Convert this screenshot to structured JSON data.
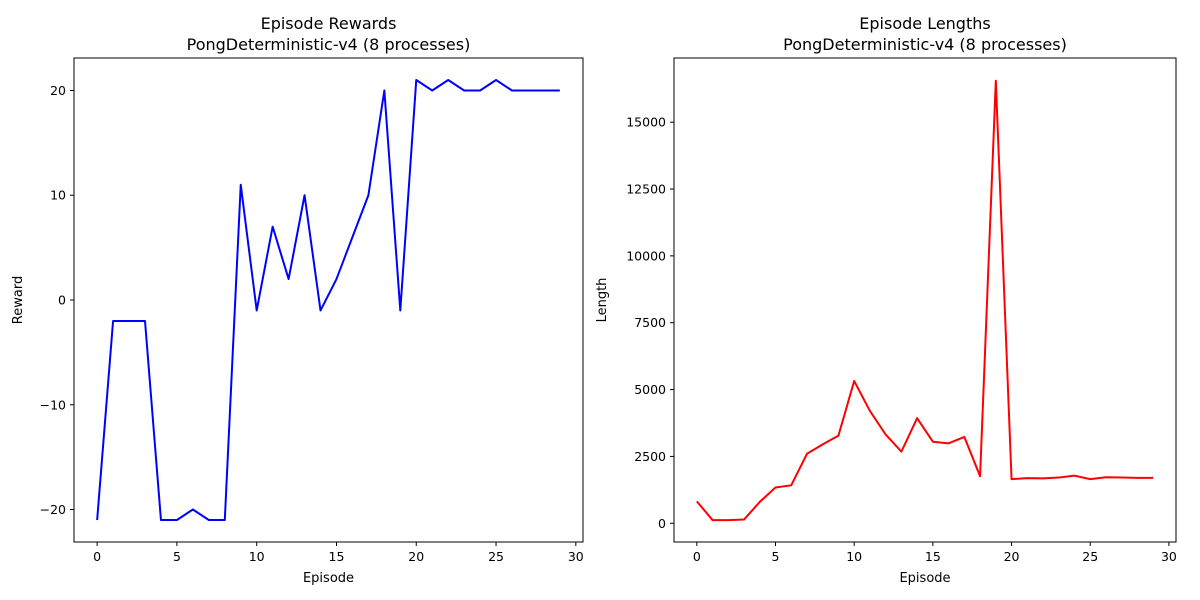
{
  "chart_data": [
    {
      "type": "line",
      "title": "Episode Rewards",
      "subtitle": "PongDeterministic-v4 (8 processes)",
      "xlabel": "Episode",
      "ylabel": "Reward",
      "xlim": [
        -1.45,
        30.45
      ],
      "ylim": [
        -23.1,
        23.1
      ],
      "xticks": [
        0,
        5,
        10,
        15,
        20,
        25,
        30
      ],
      "yticks": [
        -20,
        -10,
        0,
        10,
        20
      ],
      "ytick_labels": [
        "−20",
        "−10",
        "0",
        "10",
        "20"
      ],
      "grid": false,
      "series": [
        {
          "color": "#0000ff",
          "x": [
            0,
            1,
            2,
            3,
            4,
            5,
            6,
            7,
            8,
            9,
            10,
            11,
            12,
            13,
            14,
            15,
            16,
            17,
            18,
            19,
            20,
            21,
            22,
            23,
            24,
            25,
            26,
            27,
            28,
            29
          ],
          "values": [
            -21,
            -2,
            -2,
            -2,
            -21,
            -21,
            -20,
            -21,
            -21,
            11,
            -1,
            7,
            2,
            10,
            -1,
            2,
            6,
            10,
            20,
            -1,
            21,
            20,
            21,
            20,
            20,
            21,
            20,
            20,
            20,
            20
          ]
        }
      ]
    },
    {
      "type": "line",
      "title": "Episode Lengths",
      "subtitle": "PongDeterministic-v4 (8 processes)",
      "xlabel": "Episode",
      "ylabel": "Length",
      "xlim": [
        -1.45,
        30.45
      ],
      "ylim": [
        -700,
        17400
      ],
      "xticks": [
        0,
        5,
        10,
        15,
        20,
        25,
        30
      ],
      "yticks": [
        0,
        2500,
        5000,
        7500,
        10000,
        12500,
        15000
      ],
      "grid": false,
      "series": [
        {
          "color": "#ff0000",
          "x": [
            0,
            1,
            2,
            3,
            4,
            5,
            6,
            7,
            8,
            9,
            10,
            11,
            12,
            13,
            14,
            15,
            16,
            17,
            18,
            19,
            20,
            21,
            22,
            23,
            24,
            25,
            26,
            27,
            28,
            29
          ],
          "values": [
            820,
            120,
            120,
            140,
            800,
            1340,
            1420,
            2600,
            2950,
            3280,
            5320,
            4200,
            3320,
            2680,
            3930,
            3050,
            2990,
            3230,
            1760,
            16550,
            1650,
            1690,
            1680,
            1710,
            1780,
            1650,
            1720,
            1710,
            1700,
            1700
          ]
        }
      ]
    }
  ]
}
